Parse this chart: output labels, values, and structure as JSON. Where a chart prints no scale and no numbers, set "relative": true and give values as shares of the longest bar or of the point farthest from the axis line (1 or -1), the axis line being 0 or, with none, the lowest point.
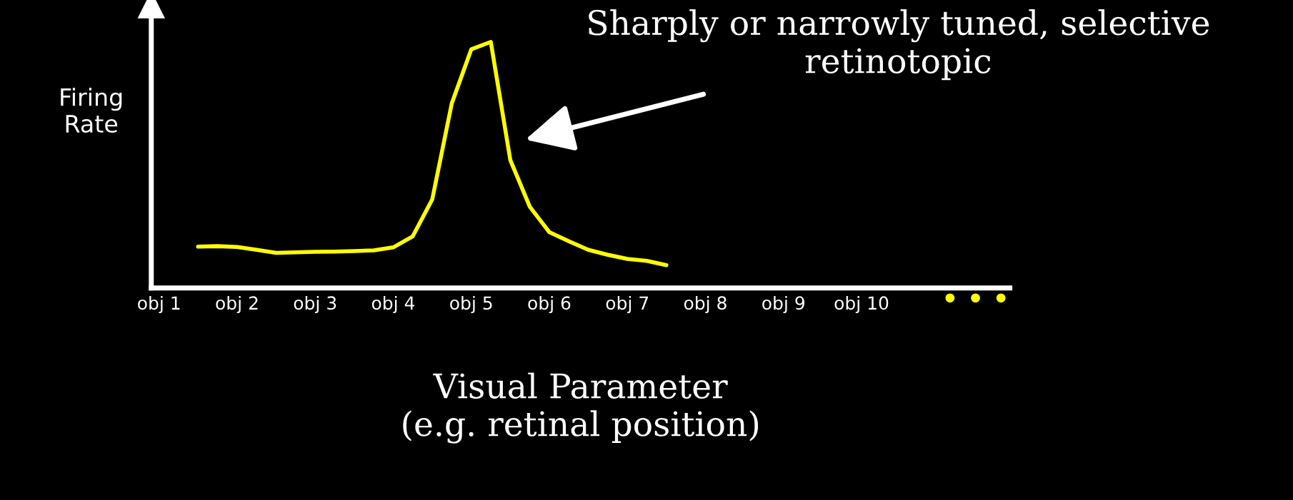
{
  "chart_data": {
    "type": "line",
    "relative": true,
    "xlabel": "Visual Parameter\n(e.g. retinal position)",
    "ylabel": "Firing\nRate",
    "categories": [
      "obj 1",
      null,
      null,
      null,
      "obj 2",
      null,
      null,
      null,
      "obj 3",
      null,
      null,
      null,
      "obj 4",
      null,
      null,
      null,
      "obj 5",
      null,
      null,
      null,
      "obj 6",
      null,
      null,
      null,
      "obj 7",
      null,
      null,
      null,
      "obj 8",
      null,
      null,
      null,
      "obj 9",
      null,
      null,
      null,
      "obj 10",
      null,
      null,
      null,
      null,
      null,
      null,
      null
    ],
    "series": [
      {
        "color": "#ffff00",
        "values": [
          null,
          null,
          0.168,
          0.17,
          0.167,
          0.155,
          0.143,
          0.145,
          0.147,
          0.148,
          0.15,
          0.153,
          0.165,
          0.21,
          0.36,
          0.75,
          0.97,
          1.0,
          0.52,
          0.33,
          0.227,
          0.19,
          0.155,
          0.135,
          0.118,
          0.11,
          0.093,
          null,
          null,
          null,
          null,
          null,
          null,
          null,
          null,
          null,
          null,
          null,
          null,
          null,
          null,
          null,
          null,
          null
        ]
      }
    ],
    "annotations": [
      "Sharply or narrowly tuned, selective\nretinotopic",
      "• • •"
    ]
  }
}
